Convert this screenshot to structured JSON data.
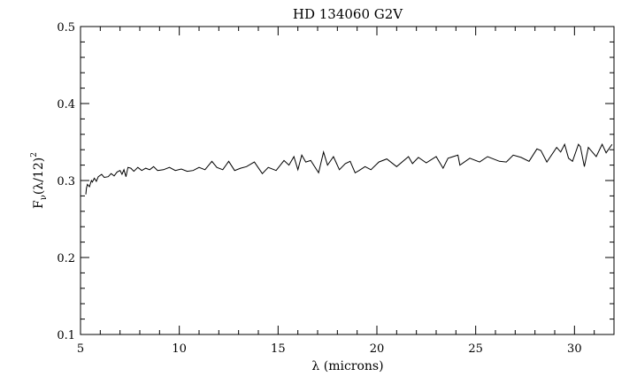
{
  "chart_data": {
    "type": "line",
    "title": "HD 134060 G2V",
    "xlabel": "λ (microns)",
    "ylabel_main": "F",
    "ylabel_sub": "ν",
    "ylabel_rest": "(λ/12)",
    "ylabel_sup": "2",
    "xlim": [
      5,
      32
    ],
    "ylim": [
      0.1,
      0.5
    ],
    "xticks": [
      5,
      10,
      15,
      20,
      25,
      30
    ],
    "xtick_labels": [
      "5",
      "10",
      "15",
      "20",
      "25",
      "30"
    ],
    "yticks": [
      0.1,
      0.2,
      0.3,
      0.4,
      0.5
    ],
    "ytick_labels": [
      "0.1",
      "0.2",
      "0.3",
      "0.4",
      "0.5"
    ],
    "x_minor_step": 1,
    "y_minor_step": 0.02,
    "grid": false,
    "series": [
      {
        "name": "HD 134060",
        "color": "#000000",
        "x": [
          5.27,
          5.3,
          5.35,
          5.45,
          5.55,
          5.6,
          5.7,
          5.8,
          5.9,
          6.07,
          6.2,
          6.4,
          6.55,
          6.7,
          6.85,
          7.0,
          7.1,
          7.2,
          7.3,
          7.4,
          7.55,
          7.7,
          7.9,
          8.1,
          8.3,
          8.5,
          8.7,
          8.9,
          9.2,
          9.5,
          9.8,
          10.1,
          10.4,
          10.7,
          11.0,
          11.3,
          11.65,
          11.9,
          12.2,
          12.5,
          12.8,
          13.1,
          13.4,
          13.8,
          14.2,
          14.5,
          14.9,
          15.3,
          15.55,
          15.8,
          16.0,
          16.2,
          16.4,
          16.65,
          17.05,
          17.3,
          17.5,
          17.8,
          18.1,
          18.4,
          18.65,
          18.9,
          19.1,
          19.4,
          19.7,
          20.1,
          20.5,
          21.0,
          21.6,
          21.8,
          22.1,
          22.5,
          23.0,
          23.35,
          23.6,
          24.1,
          24.2,
          24.7,
          25.2,
          25.6,
          26.2,
          26.55,
          26.9,
          27.3,
          27.7,
          28.1,
          28.3,
          28.6,
          29.1,
          29.3,
          29.5,
          29.7,
          29.9,
          30.2,
          30.3,
          30.5,
          30.7,
          31.1,
          31.4,
          31.6,
          31.9
        ],
        "y": [
          0.282,
          0.29,
          0.295,
          0.292,
          0.3,
          0.298,
          0.303,
          0.299,
          0.305,
          0.308,
          0.304,
          0.305,
          0.309,
          0.306,
          0.311,
          0.313,
          0.308,
          0.314,
          0.305,
          0.317,
          0.316,
          0.312,
          0.317,
          0.313,
          0.316,
          0.314,
          0.318,
          0.313,
          0.314,
          0.317,
          0.313,
          0.315,
          0.312,
          0.313,
          0.317,
          0.314,
          0.325,
          0.317,
          0.314,
          0.325,
          0.313,
          0.316,
          0.318,
          0.324,
          0.309,
          0.317,
          0.313,
          0.326,
          0.32,
          0.331,
          0.314,
          0.333,
          0.324,
          0.326,
          0.31,
          0.337,
          0.32,
          0.331,
          0.314,
          0.322,
          0.325,
          0.31,
          0.313,
          0.318,
          0.314,
          0.324,
          0.328,
          0.318,
          0.331,
          0.322,
          0.33,
          0.323,
          0.331,
          0.316,
          0.329,
          0.333,
          0.32,
          0.329,
          0.324,
          0.331,
          0.325,
          0.324,
          0.333,
          0.33,
          0.325,
          0.341,
          0.339,
          0.324,
          0.343,
          0.337,
          0.347,
          0.329,
          0.325,
          0.347,
          0.344,
          0.318,
          0.343,
          0.331,
          0.347,
          0.336,
          0.347
        ]
      }
    ]
  }
}
